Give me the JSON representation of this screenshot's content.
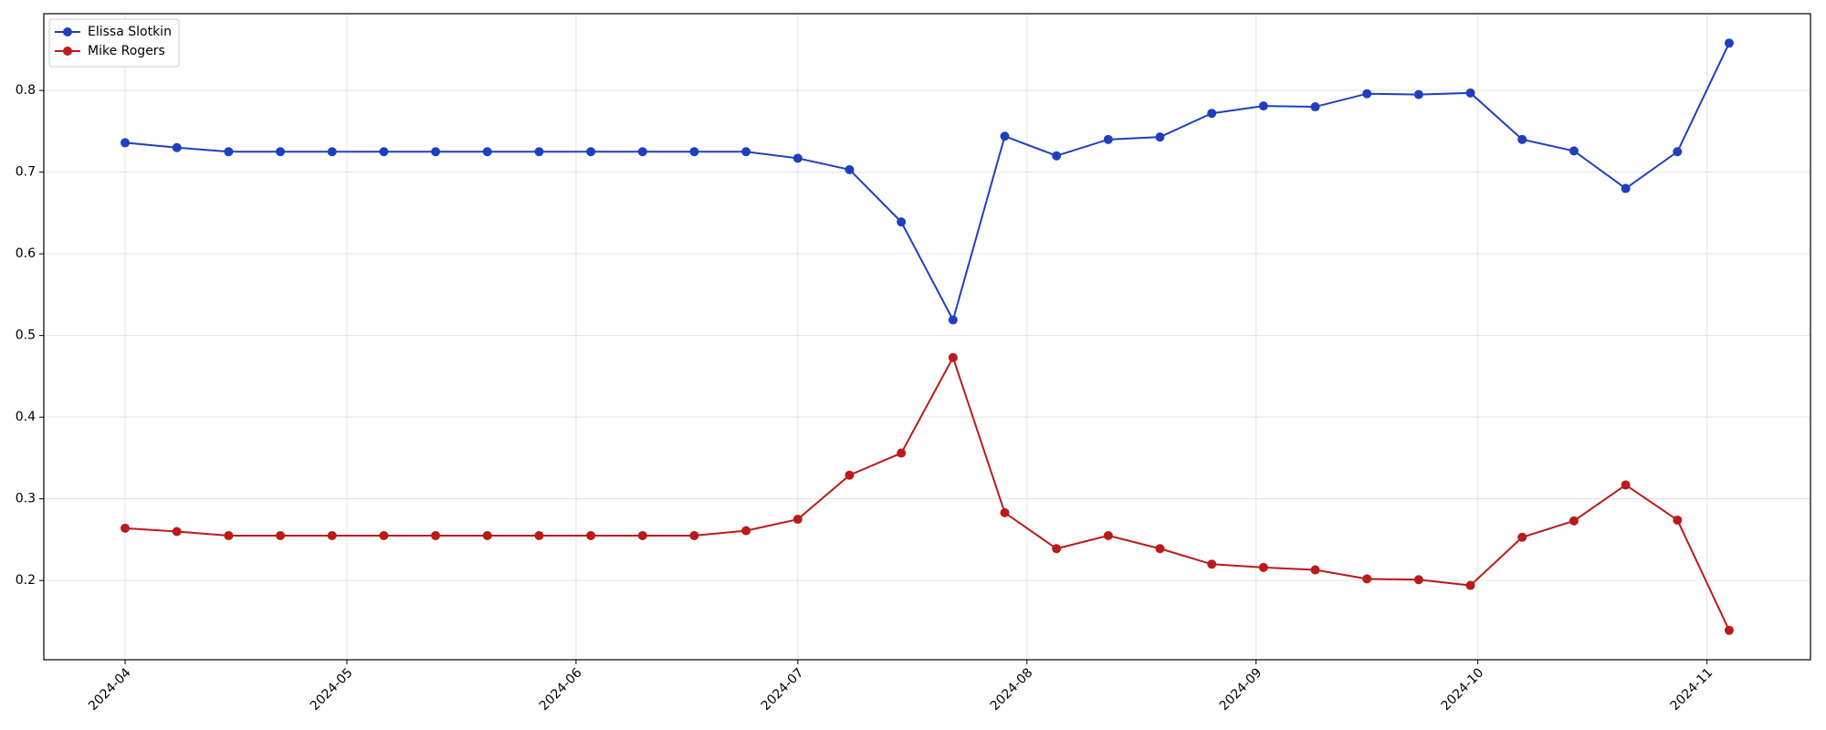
{
  "chart_data": {
    "type": "line",
    "x": [
      "2024-04-01",
      "2024-04-08",
      "2024-04-15",
      "2024-04-22",
      "2024-04-29",
      "2024-05-06",
      "2024-05-13",
      "2024-05-20",
      "2024-05-27",
      "2024-06-03",
      "2024-06-10",
      "2024-06-17",
      "2024-06-24",
      "2024-07-01",
      "2024-07-08",
      "2024-07-15",
      "2024-07-22",
      "2024-07-29",
      "2024-08-05",
      "2024-08-12",
      "2024-08-19",
      "2024-08-26",
      "2024-09-02",
      "2024-09-09",
      "2024-09-16",
      "2024-09-23",
      "2024-09-30",
      "2024-10-07",
      "2024-10-14",
      "2024-10-21",
      "2024-10-28",
      "2024-11-04"
    ],
    "series": [
      {
        "name": "Elissa Slotkin",
        "color": "#1f3fbf",
        "values": [
          0.736,
          0.73,
          0.725,
          0.725,
          0.725,
          0.725,
          0.725,
          0.725,
          0.725,
          0.725,
          0.725,
          0.725,
          0.725,
          0.717,
          0.703,
          0.639,
          0.519,
          0.744,
          0.72,
          0.74,
          0.743,
          0.772,
          0.781,
          0.78,
          0.796,
          0.795,
          0.797,
          0.74,
          0.726,
          0.68,
          0.725,
          0.858
        ]
      },
      {
        "name": "Mike Rogers",
        "color": "#bb1a1a",
        "values": [
          0.264,
          0.26,
          0.255,
          0.255,
          0.255,
          0.255,
          0.255,
          0.255,
          0.255,
          0.255,
          0.255,
          0.255,
          0.261,
          0.275,
          0.329,
          0.356,
          0.473,
          0.283,
          0.239,
          0.255,
          0.239,
          0.22,
          0.216,
          0.213,
          0.202,
          0.201,
          0.194,
          0.253,
          0.273,
          0.317,
          0.274,
          0.139
        ]
      }
    ],
    "xlim": [
      "2024-03-21",
      "2024-11-15"
    ],
    "xticks": [
      {
        "value": "2024-04-01",
        "label": "2024-04"
      },
      {
        "value": "2024-05-01",
        "label": "2024-05"
      },
      {
        "value": "2024-06-01",
        "label": "2024-06"
      },
      {
        "value": "2024-07-01",
        "label": "2024-07"
      },
      {
        "value": "2024-08-01",
        "label": "2024-08"
      },
      {
        "value": "2024-09-01",
        "label": "2024-09"
      },
      {
        "value": "2024-10-01",
        "label": "2024-10"
      },
      {
        "value": "2024-11-01",
        "label": "2024-11"
      }
    ],
    "ylim": [
      0.103,
      0.894
    ],
    "yticks": [
      0.2,
      0.3,
      0.4,
      0.5,
      0.6,
      0.7,
      0.8
    ],
    "grid": true,
    "legend": "upper-left"
  }
}
